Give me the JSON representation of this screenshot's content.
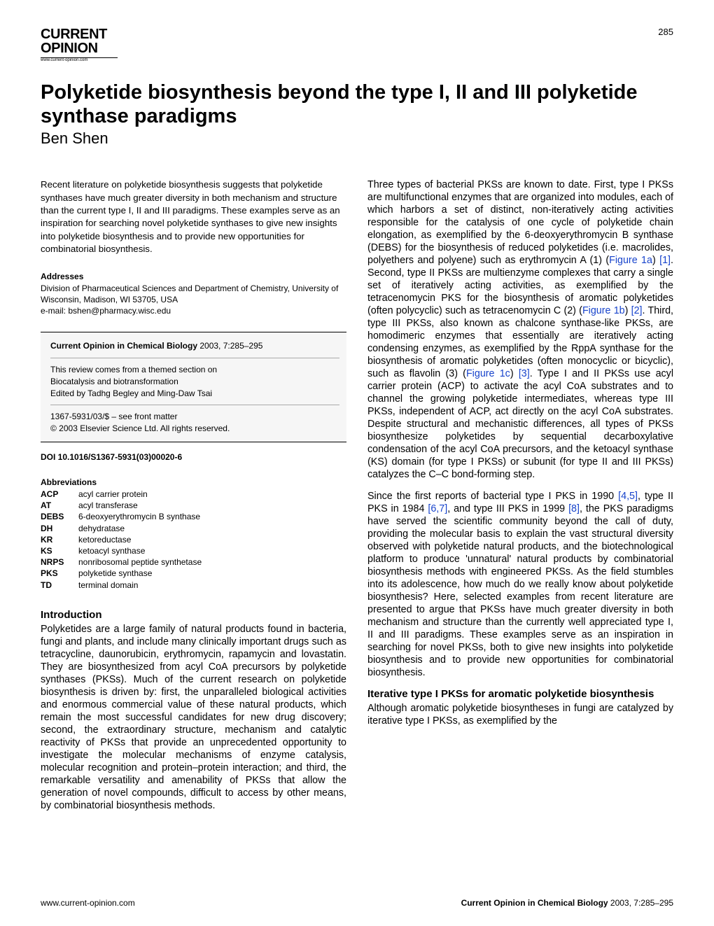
{
  "pageNumber": "285",
  "logo": {
    "line1": "CURRENT",
    "line2": "OPINION",
    "url": "www.current-opinion.com"
  },
  "title": "Polyketide biosynthesis beyond the type I, II and III polyketide synthase paradigms",
  "author": "Ben Shen",
  "abstract": "Recent literature on polyketide biosynthesis suggests that polyketide synthases have much greater diversity in both mechanism and structure than the current type I, II and III paradigms. These examples serve as an inspiration for searching novel polyketide synthases to give new insights into polyketide biosynthesis and to provide new opportunities for combinatorial biosynthesis.",
  "addresses": {
    "header": "Addresses",
    "body": "Division of Pharmaceutical Sciences and Department of Chemistry, University of Wisconsin, Madison, WI 53705, USA\ne-mail: bshen@pharmacy.wisc.edu"
  },
  "infobox": {
    "journal": "Current Opinion in Chemical Biology",
    "cite": " 2003, 7:285–295",
    "themed": "This review comes from a themed section on\nBiocatalysis and biotransformation\nEdited by Tadhg Begley and Ming-Daw Tsai",
    "matter": "1367-5931/03/$ – see front matter\n© 2003 Elsevier Science Ltd. All rights reserved."
  },
  "doi": "DOI 10.1016/S1367-5931(03)00020-6",
  "abbreviations": {
    "header": "Abbreviations",
    "items": [
      {
        "k": "ACP",
        "v": "acyl carrier protein"
      },
      {
        "k": "AT",
        "v": "acyl transferase"
      },
      {
        "k": "DEBS",
        "v": "6-deoxyerythromycin B synthase"
      },
      {
        "k": "DH",
        "v": "dehydratase"
      },
      {
        "k": "KR",
        "v": "ketoreductase"
      },
      {
        "k": "KS",
        "v": "ketoacyl synthase"
      },
      {
        "k": "NRPS",
        "v": "nonribosomal peptide synthetase"
      },
      {
        "k": "PKS",
        "v": "polyketide synthase"
      },
      {
        "k": "TD",
        "v": "terminal domain"
      }
    ]
  },
  "sections": {
    "introHeader": "Introduction",
    "introPara": "Polyketides are a large family of natural products found in bacteria, fungi and plants, and include many clinically important drugs such as tetracycline, daunorubicin, erythromycin, rapamycin and lovastatin. They are biosynthesized from acyl CoA precursors by polyketide synthases (PKSs). Much of the current research on polyketide biosynthesis is driven by: first, the unparalleled biological activities and enormous commercial value of these natural products, which remain the most successful candidates for new drug discovery; second, the extraordinary structure, mechanism and catalytic reactivity of PKSs that provide an unprecedented opportunity to investigate the molecular mechanisms of enzyme catalysis, molecular recognition and protein–protein interaction; and third, the remarkable versatility and amenability of PKSs that allow the generation of novel compounds, difficult to access by other means, by combinatorial biosynthesis methods.",
    "iterHeader": "Iterative type I PKSs for aromatic polyketide biosynthesis",
    "iterPara": "Although aromatic polyketide biosyntheses in fungi are catalyzed by iterative type I PKSs, as exemplified by the"
  },
  "rightCol": {
    "p1a": "Three types of bacterial PKSs are known to date. First, type I PKSs are multifunctional enzymes that are organized into modules, each of which harbors a set of distinct, non-iteratively acting activities responsible for the catalysis of one cycle of polyketide chain elongation, as exemplified by the 6-deoxyerythromycin B synthase (DEBS) for the biosynthesis of reduced polyketides (i.e. macrolides, polyethers and polyene) such as erythromycin A (1) (",
    "p1r1": "Figure 1a",
    "p1b": ") ",
    "p1r2": "[1]",
    "p1c": ". Second, type II PKSs are multienzyme complexes that carry a single set of iteratively acting activities, as exemplified by the tetracenomycin PKS for the biosynthesis of aromatic polyketides (often polycyclic) such as tetracenomycin C (2) (",
    "p1r3": "Figure 1b",
    "p1d": ") ",
    "p1r4": "[2]",
    "p1e": ". Third, type III PKSs, also known as chalcone synthase-like PKSs, are homodimeric enzymes that essentially are iteratively acting condensing enzymes, as exemplified by the RppA synthase for the biosynthesis of aromatic polyketides (often monocyclic or bicyclic), such as flavolin (3) (",
    "p1r5": "Figure 1c",
    "p1f": ") ",
    "p1r6": "[3]",
    "p1g": ". Type I and II PKSs use acyl carrier protein (ACP) to activate the acyl CoA substrates and to channel the growing polyketide intermediates, whereas type III PKSs, independent of ACP, act directly on the acyl CoA substrates. Despite structural and mechanistic differences, all types of PKSs biosynthesize polyketides by sequential decarboxylative condensation of the acyl CoA precursors, and the ketoacyl synthase (KS) domain (for type I PKSs) or subunit (for type II and III PKSs) catalyzes the C–C bond-forming step.",
    "p2a": "Since the first reports of bacterial type I PKS in 1990 ",
    "p2r1": "[4,5]",
    "p2b": ", type II PKS in 1984 ",
    "p2r2": "[6,7]",
    "p2c": ", and type III PKS in 1999 ",
    "p2r3": "[8]",
    "p2d": ", the PKS paradigms have served the scientific community beyond the call of duty, providing the molecular basis to explain the vast structural diversity observed with polyketide natural products, and the biotechnological platform to produce 'unnatural' natural products by combinatorial biosynthesis methods with engineered PKSs. As the field stumbles into its adolescence, how much do we really know about polyketide biosynthesis? Here, selected examples from recent literature are presented to argue that PKSs have much greater diversity in both mechanism and structure than the currently well appreciated type I, II and III paradigms. These examples serve as an inspiration in searching for novel PKSs, both to give new insights into polyketide biosynthesis and to provide new opportunities for combinatorial biosynthesis."
  },
  "footer": {
    "left": "www.current-opinion.com",
    "rightBold": "Current Opinion in Chemical Biology",
    "rightRest": " 2003, 7:285–295"
  },
  "colors": {
    "link": "#1844cc",
    "text": "#000000",
    "bg": "#ffffff",
    "boxbg": "#f6f6f6"
  }
}
